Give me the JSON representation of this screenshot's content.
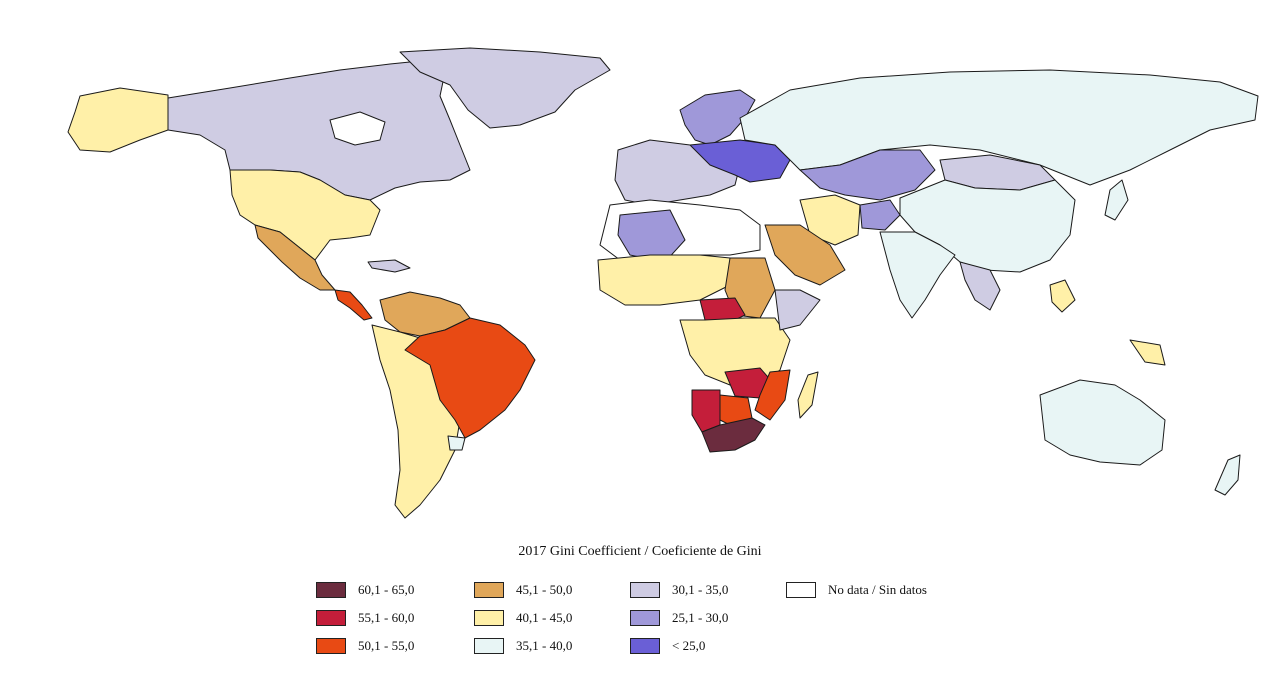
{
  "legend": {
    "title": "2017 Gini Coefficient / Coeficiente de Gini",
    "columns": [
      [
        {
          "label": "60,1 - 65,0",
          "color": "#6b2c3e"
        },
        {
          "label": "55,1 - 60,0",
          "color": "#c41e3a"
        },
        {
          "label": "50,1 - 55,0",
          "color": "#e84a14"
        }
      ],
      [
        {
          "label": "45,1 - 50,0",
          "color": "#e0a75a"
        },
        {
          "label": "40,1 - 45,0",
          "color": "#fff0a8"
        },
        {
          "label": "35,1 - 40,0",
          "color": "#e8f5f5"
        }
      ],
      [
        {
          "label": "30,1 - 35,0",
          "color": "#cfcce3"
        },
        {
          "label": "25,1 - 30,0",
          "color": "#9f98d9"
        },
        {
          "label": "< 25,0",
          "color": "#6a5fd6"
        }
      ],
      [
        {
          "label": "No data / Sin datos",
          "color": "#ffffff"
        }
      ]
    ]
  },
  "map": {
    "regions": [
      {
        "name": "canada",
        "class": "30,1 - 35,0"
      },
      {
        "name": "alaska",
        "class": "40,1 - 45,0"
      },
      {
        "name": "united-states",
        "class": "40,1 - 45,0"
      },
      {
        "name": "greenland",
        "class": "30,1 - 35,0"
      },
      {
        "name": "mexico",
        "class": "45,1 - 50,0"
      },
      {
        "name": "central-america",
        "class": "50,1 - 55,0"
      },
      {
        "name": "brazil",
        "class": "50,1 - 55,0"
      },
      {
        "name": "south-america",
        "class": "40,1 - 45,0"
      },
      {
        "name": "russia",
        "class": "35,1 - 40,0"
      },
      {
        "name": "china",
        "class": "35,1 - 40,0"
      },
      {
        "name": "australia",
        "class": "35,1 - 40,0"
      },
      {
        "name": "kazakhstan",
        "class": "25,1 - 30,0"
      },
      {
        "name": "southern-africa",
        "class": "60,1 - 65,0"
      }
    ]
  }
}
